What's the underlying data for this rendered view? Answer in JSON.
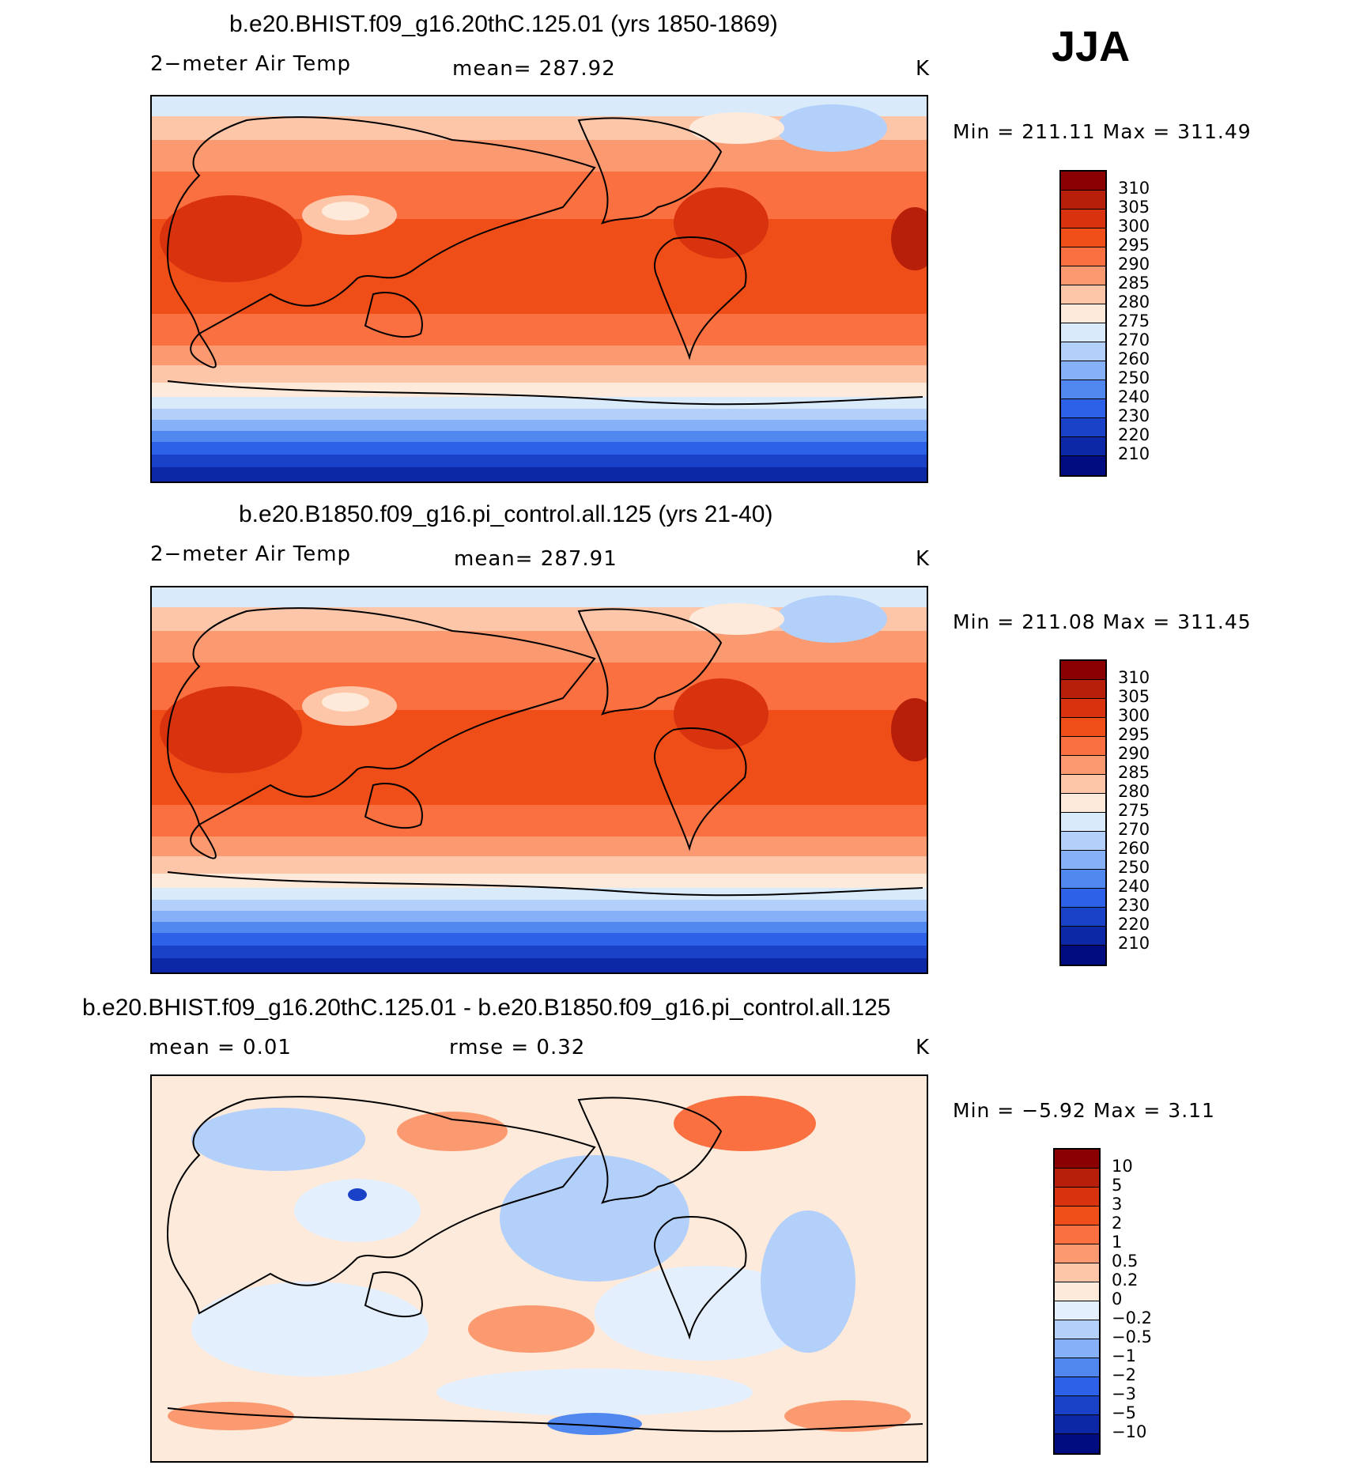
{
  "season": "JJA",
  "panels": [
    {
      "title": "b.e20.BHIST.f09_g16.20thC.125.01 (yrs 1850-1869)",
      "variable": "2−meter Air Temp",
      "mean_text": "mean=  287.92",
      "units": "K",
      "minmax_text": "Min  =  211.11  Max  =  311.49",
      "colorbar_labels": [
        "310",
        "305",
        "300",
        "295",
        "290",
        "285",
        "280",
        "275",
        "270",
        "260",
        "250",
        "240",
        "230",
        "220",
        "210"
      ]
    },
    {
      "title": "b.e20.B1850.f09_g16.pi_control.all.125 (yrs 21-40)",
      "variable": "2−meter Air Temp",
      "mean_text": "mean=  287.91",
      "units": "K",
      "minmax_text": "Min  =  211.08  Max  =  311.45",
      "colorbar_labels": [
        "310",
        "305",
        "300",
        "295",
        "290",
        "285",
        "280",
        "275",
        "270",
        "260",
        "250",
        "240",
        "230",
        "220",
        "210"
      ]
    },
    {
      "title": "b.e20.BHIST.f09_g16.20thC.125.01 - b.e20.B1850.f09_g16.pi_control.all.125",
      "mean_text": "mean  =     0.01",
      "rmse_text": "rmse  =     0.32",
      "units": "K",
      "minmax_text": "Min  =     −5.92  Max  =     3.11",
      "colorbar_labels": [
        "10",
        "5",
        "3",
        "2",
        "1",
        "0.5",
        "0.2",
        "0",
        "−0.2",
        "−0.5",
        "−1",
        "−2",
        "−3",
        "−5",
        "−10"
      ]
    }
  ],
  "colors": {
    "temp_scale": [
      "#8b0000",
      "#b81f0a",
      "#d8320f",
      "#f04e18",
      "#fa7040",
      "#fb9a70",
      "#fdc6a8",
      "#feeada",
      "#d9ebfb",
      "#b3d0fa",
      "#86b0f7",
      "#5088f0",
      "#2d62e8",
      "#1a42c8",
      "#0c28a6",
      "#000c80"
    ],
    "diff_scale": [
      "#8b0000",
      "#b81f0a",
      "#d8320f",
      "#f04e18",
      "#fa7040",
      "#fb9a70",
      "#fdc6a8",
      "#feeada",
      "#e3effc",
      "#b3d0fa",
      "#86b0f7",
      "#5088f0",
      "#2d62e8",
      "#1a42c8",
      "#0c28a6",
      "#000c80"
    ]
  }
}
